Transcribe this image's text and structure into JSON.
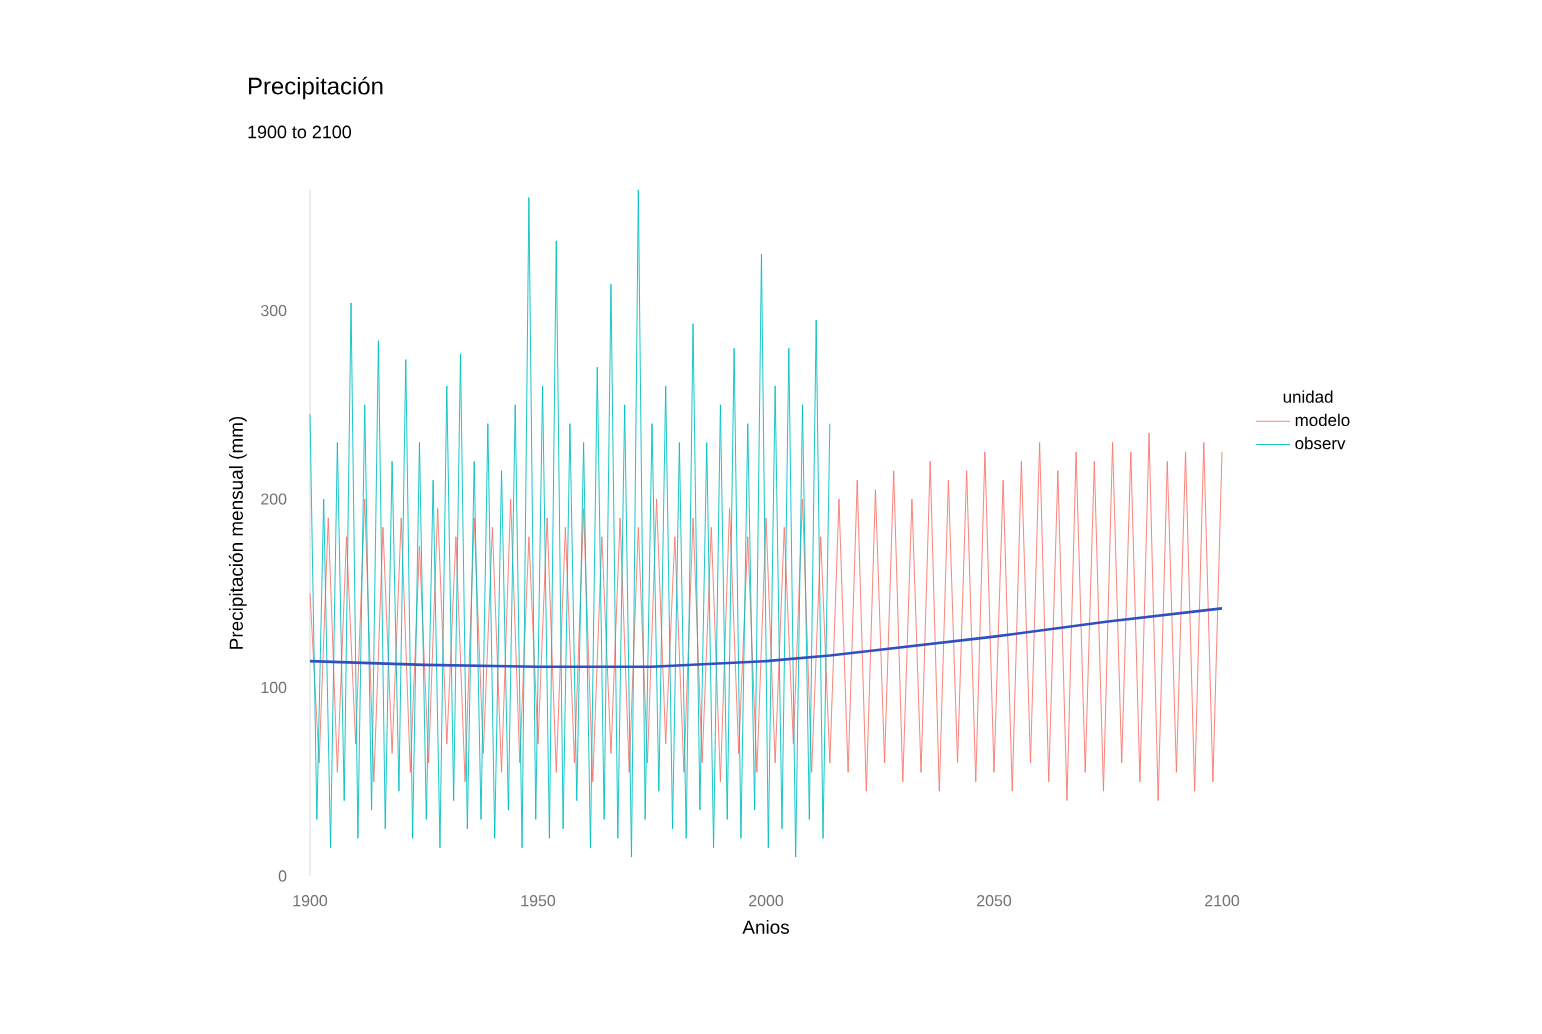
{
  "chart_data": {
    "type": "line",
    "title": "Precipitación",
    "subtitle": "1900 to 2100",
    "xlabel": "Anios",
    "ylabel": "Precipitación mensual (mm)",
    "legend_title": "unidad",
    "legend": "right",
    "xlim": [
      1900,
      2100
    ],
    "ylim": [
      0,
      364
    ],
    "xticks": [
      1900,
      1950,
      2000,
      2050,
      2100
    ],
    "yticks": [
      0,
      100,
      200,
      300
    ],
    "series": [
      {
        "name": "modelo",
        "color": "#f8766d",
        "x": [
          1900,
          1902,
          1904,
          1906,
          1908,
          1910,
          1912,
          1914,
          1916,
          1918,
          1920,
          1922,
          1924,
          1926,
          1928,
          1930,
          1932,
          1934,
          1936,
          1938,
          1940,
          1942,
          1944,
          1946,
          1948,
          1950,
          1952,
          1954,
          1956,
          1958,
          1960,
          1962,
          1964,
          1966,
          1968,
          1970,
          1972,
          1974,
          1976,
          1978,
          1980,
          1982,
          1984,
          1986,
          1988,
          1990,
          1992,
          1994,
          1996,
          1998,
          2000,
          2002,
          2004,
          2006,
          2008,
          2010,
          2012,
          2014,
          2016,
          2018,
          2020,
          2022,
          2024,
          2026,
          2028,
          2030,
          2032,
          2034,
          2036,
          2038,
          2040,
          2042,
          2044,
          2046,
          2048,
          2050,
          2052,
          2054,
          2056,
          2058,
          2060,
          2062,
          2064,
          2066,
          2068,
          2070,
          2072,
          2074,
          2076,
          2078,
          2080,
          2082,
          2084,
          2086,
          2088,
          2090,
          2092,
          2094,
          2096,
          2098,
          2100
        ],
        "values": [
          150,
          60,
          190,
          55,
          180,
          70,
          200,
          50,
          185,
          65,
          190,
          55,
          175,
          60,
          195,
          70,
          180,
          50,
          190,
          65,
          185,
          55,
          200,
          60,
          180,
          70,
          190,
          55,
          185,
          60,
          195,
          50,
          180,
          65,
          190,
          55,
          185,
          60,
          200,
          70,
          180,
          55,
          190,
          60,
          185,
          50,
          195,
          65,
          180,
          55,
          190,
          60,
          185,
          70,
          200,
          55,
          180,
          60,
          200,
          55,
          210,
          45,
          205,
          60,
          215,
          50,
          200,
          55,
          220,
          45,
          210,
          60,
          215,
          50,
          225,
          55,
          210,
          45,
          220,
          60,
          230,
          50,
          215,
          40,
          225,
          55,
          220,
          45,
          230,
          60,
          225,
          50,
          235,
          40,
          220,
          55,
          225,
          45,
          230,
          50,
          225
        ]
      },
      {
        "name": "observ",
        "color": "#00bfc4",
        "x": [
          1900,
          1901.5,
          1903,
          1904.5,
          1906,
          1907.5,
          1909,
          1910.5,
          1912,
          1913.5,
          1915,
          1916.5,
          1918,
          1919.5,
          1921,
          1922.5,
          1924,
          1925.5,
          1927,
          1928.5,
          1930,
          1931.5,
          1933,
          1934.5,
          1936,
          1937.5,
          1939,
          1940.5,
          1942,
          1943.5,
          1945,
          1946.5,
          1948,
          1949.5,
          1951,
          1952.5,
          1954,
          1955.5,
          1957,
          1958.5,
          1960,
          1961.5,
          1963,
          1964.5,
          1966,
          1967.5,
          1969,
          1970.5,
          1972,
          1973.5,
          1975,
          1976.5,
          1978,
          1979.5,
          1981,
          1982.5,
          1984,
          1985.5,
          1987,
          1988.5,
          1990,
          1991.5,
          1993,
          1994.5,
          1996,
          1997.5,
          1999,
          2000.5,
          2002,
          2003.5,
          2005,
          2006.5,
          2008,
          2009.5,
          2011,
          2012.5,
          2014
        ],
        "values": [
          245,
          30,
          200,
          15,
          230,
          40,
          304,
          20,
          250,
          35,
          284,
          25,
          220,
          45,
          274,
          20,
          230,
          30,
          210,
          15,
          260,
          40,
          277,
          25,
          220,
          30,
          240,
          20,
          215,
          35,
          250,
          15,
          360,
          30,
          260,
          20,
          337,
          25,
          240,
          40,
          230,
          15,
          270,
          30,
          314,
          20,
          250,
          10,
          364,
          30,
          240,
          45,
          260,
          25,
          230,
          20,
          293,
          35,
          230,
          15,
          250,
          30,
          280,
          20,
          240,
          35,
          330,
          15,
          260,
          25,
          280,
          10,
          250,
          30,
          295,
          20,
          240
        ]
      },
      {
        "type": "line",
        "color": "#3050c0",
        "x": [
          1900,
          1925,
          1950,
          1975,
          2000,
          2014,
          2025,
          2050,
          2075,
          2100
        ],
        "values": [
          114,
          112,
          111,
          111,
          114,
          117,
          120,
          127,
          135,
          142
        ]
      }
    ]
  }
}
